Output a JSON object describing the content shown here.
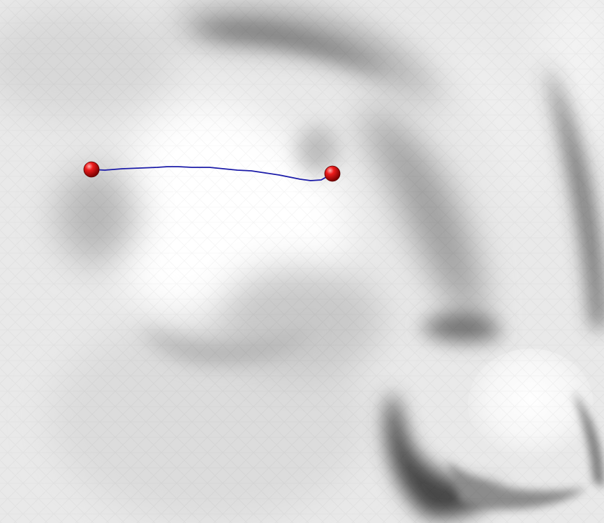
{
  "scene": {
    "subject": "3d-face-mesh-render",
    "landmarks": [
      {
        "name": "landmark-left",
        "color": "#dd1111"
      },
      {
        "name": "landmark-right",
        "color": "#dd1111"
      }
    ],
    "geodesic_path": {
      "color": "#1a1aa8"
    }
  }
}
